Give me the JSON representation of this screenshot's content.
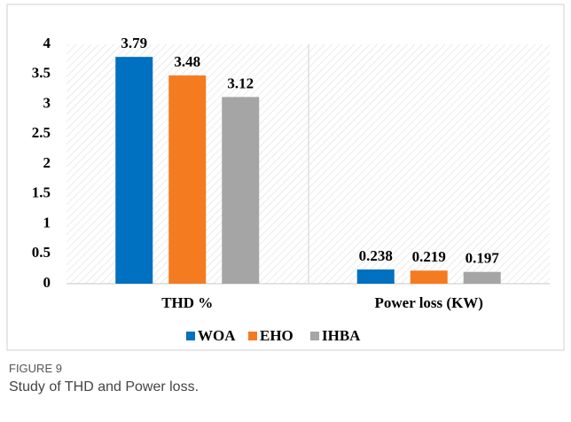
{
  "chart_data": {
    "type": "bar",
    "categories": [
      "THD %",
      "Power loss (KW)"
    ],
    "series": [
      {
        "name": "WOA",
        "color": "#0070c0",
        "values": [
          3.79,
          0.238
        ]
      },
      {
        "name": "EHO",
        "color": "#f47b20",
        "values": [
          3.48,
          0.219
        ]
      },
      {
        "name": "IHBA",
        "color": "#a5a5a5",
        "values": [
          3.12,
          0.197
        ]
      }
    ],
    "ylim": [
      0,
      4
    ],
    "yticks": [
      0,
      0.5,
      1,
      1.5,
      2,
      2.5,
      3,
      3.5,
      4
    ],
    "grid": false,
    "legend": "bottom"
  },
  "figure_label": "FIGURE 9",
  "caption": "Study of THD and Power loss."
}
